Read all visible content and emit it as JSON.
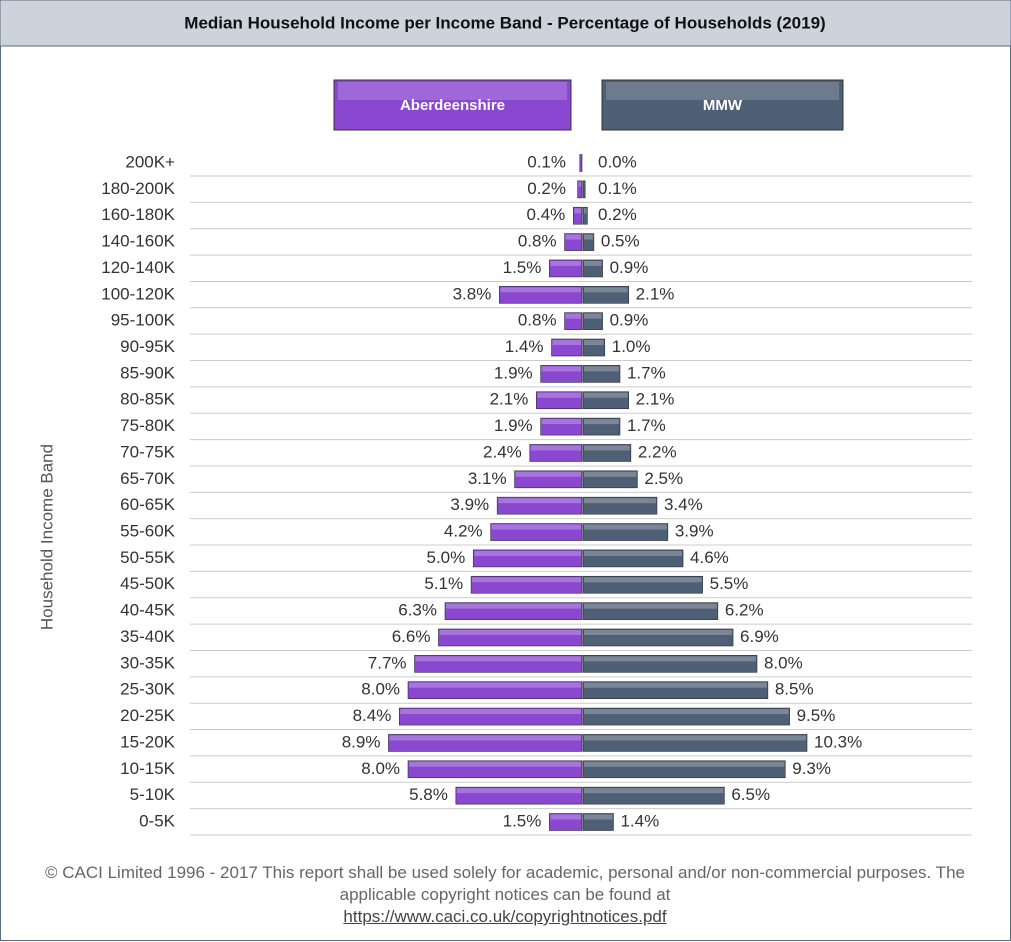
{
  "chart_data": {
    "type": "pyramid",
    "title": "Median Household Income per Income Band - Percentage of Households (2019)",
    "y_label": "Household Income Band",
    "categories": [
      "200K+",
      "180-200K",
      "160-180K",
      "140-160K",
      "120-140K",
      "100-120K",
      "95-100K",
      "90-95K",
      "85-90K",
      "80-85K",
      "75-80K",
      "70-75K",
      "65-70K",
      "60-65K",
      "55-60K",
      "50-55K",
      "45-50K",
      "40-45K",
      "35-40K",
      "30-35K",
      "25-30K",
      "20-25K",
      "15-20K",
      "10-15K",
      "5-10K",
      "0-5K"
    ],
    "series": [
      {
        "name": "Aberdeenshire",
        "color": "#8a47d0",
        "values": [
          0.1,
          0.2,
          0.4,
          0.8,
          1.5,
          3.8,
          0.8,
          1.4,
          1.9,
          2.1,
          1.9,
          2.4,
          3.1,
          3.9,
          4.2,
          5.0,
          5.1,
          6.3,
          6.6,
          7.7,
          8.0,
          8.4,
          8.9,
          8.0,
          5.8,
          1.5
        ],
        "value_labels": [
          "0.1%",
          "0.2%",
          "0.4%",
          "0.8%",
          "1.5%",
          "3.8%",
          "0.8%",
          "1.4%",
          "1.9%",
          "2.1%",
          "1.9%",
          "2.4%",
          "3.1%",
          "3.9%",
          "4.2%",
          "5.0%",
          "5.1%",
          "6.3%",
          "6.6%",
          "7.7%",
          "8.0%",
          "8.4%",
          "8.9%",
          "8.0%",
          "5.8%",
          "1.5%"
        ]
      },
      {
        "name": "MMW",
        "color": "#4f5f75",
        "values": [
          0.0,
          0.1,
          0.2,
          0.5,
          0.9,
          2.1,
          0.9,
          1.0,
          1.7,
          2.1,
          1.7,
          2.2,
          2.5,
          3.4,
          3.9,
          4.6,
          5.5,
          6.2,
          6.9,
          8.0,
          8.5,
          9.5,
          10.3,
          9.3,
          6.5,
          1.4
        ],
        "value_labels": [
          "0.0%",
          "0.1%",
          "0.2%",
          "0.5%",
          "0.9%",
          "2.1%",
          "0.9%",
          "1.0%",
          "1.7%",
          "2.1%",
          "1.7%",
          "2.2%",
          "2.5%",
          "3.4%",
          "3.9%",
          "4.6%",
          "5.5%",
          "6.2%",
          "6.9%",
          "8.0%",
          "8.5%",
          "9.5%",
          "10.3%",
          "9.3%",
          "6.5%",
          "1.4%"
        ]
      }
    ],
    "grid": true
  },
  "footer": {
    "text": "© CACI Limited 1996 - 2017   This report shall be used solely for academic, personal and/or non-commercial purposes.  The applicable copyright notices can be found at",
    "link": "https://www.caci.co.uk/copyrightnotices.pdf"
  }
}
